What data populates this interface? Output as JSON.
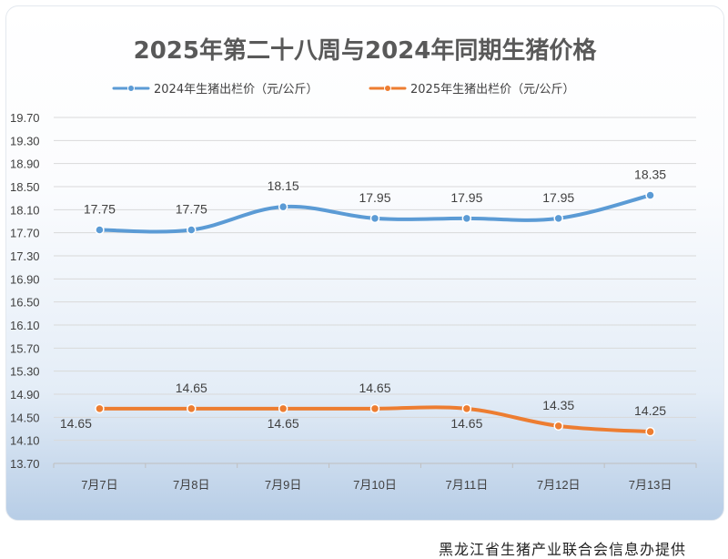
{
  "chart_data": {
    "type": "line",
    "title": "2025年第二十八周与2024年同期生猪价格",
    "categories": [
      "7月7日",
      "7月8日",
      "7月9日",
      "7月10日",
      "7月11日",
      "7月12日",
      "7月13日"
    ],
    "series": [
      {
        "name": "2024年生猪出栏价（元/公斤）",
        "color": "#5b9bd5",
        "values": [
          17.75,
          17.75,
          18.15,
          17.95,
          17.95,
          17.95,
          18.35
        ]
      },
      {
        "name": "2025年生猪出栏价（元/公斤）",
        "color": "#ed7d31",
        "values": [
          14.65,
          14.65,
          14.65,
          14.65,
          14.65,
          14.35,
          14.25
        ]
      }
    ],
    "y_ticks": [
      "19.70",
      "19.30",
      "18.90",
      "18.50",
      "18.10",
      "17.70",
      "17.30",
      "16.90",
      "16.50",
      "16.10",
      "15.70",
      "15.30",
      "14.90",
      "14.50",
      "14.10",
      "13.70"
    ],
    "ylim": [
      13.7,
      19.7
    ],
    "xlabel": "",
    "ylabel": "",
    "grid": true,
    "legend_position": "top"
  },
  "source_note": "黑龙江省生猪产业联合会信息办提供"
}
